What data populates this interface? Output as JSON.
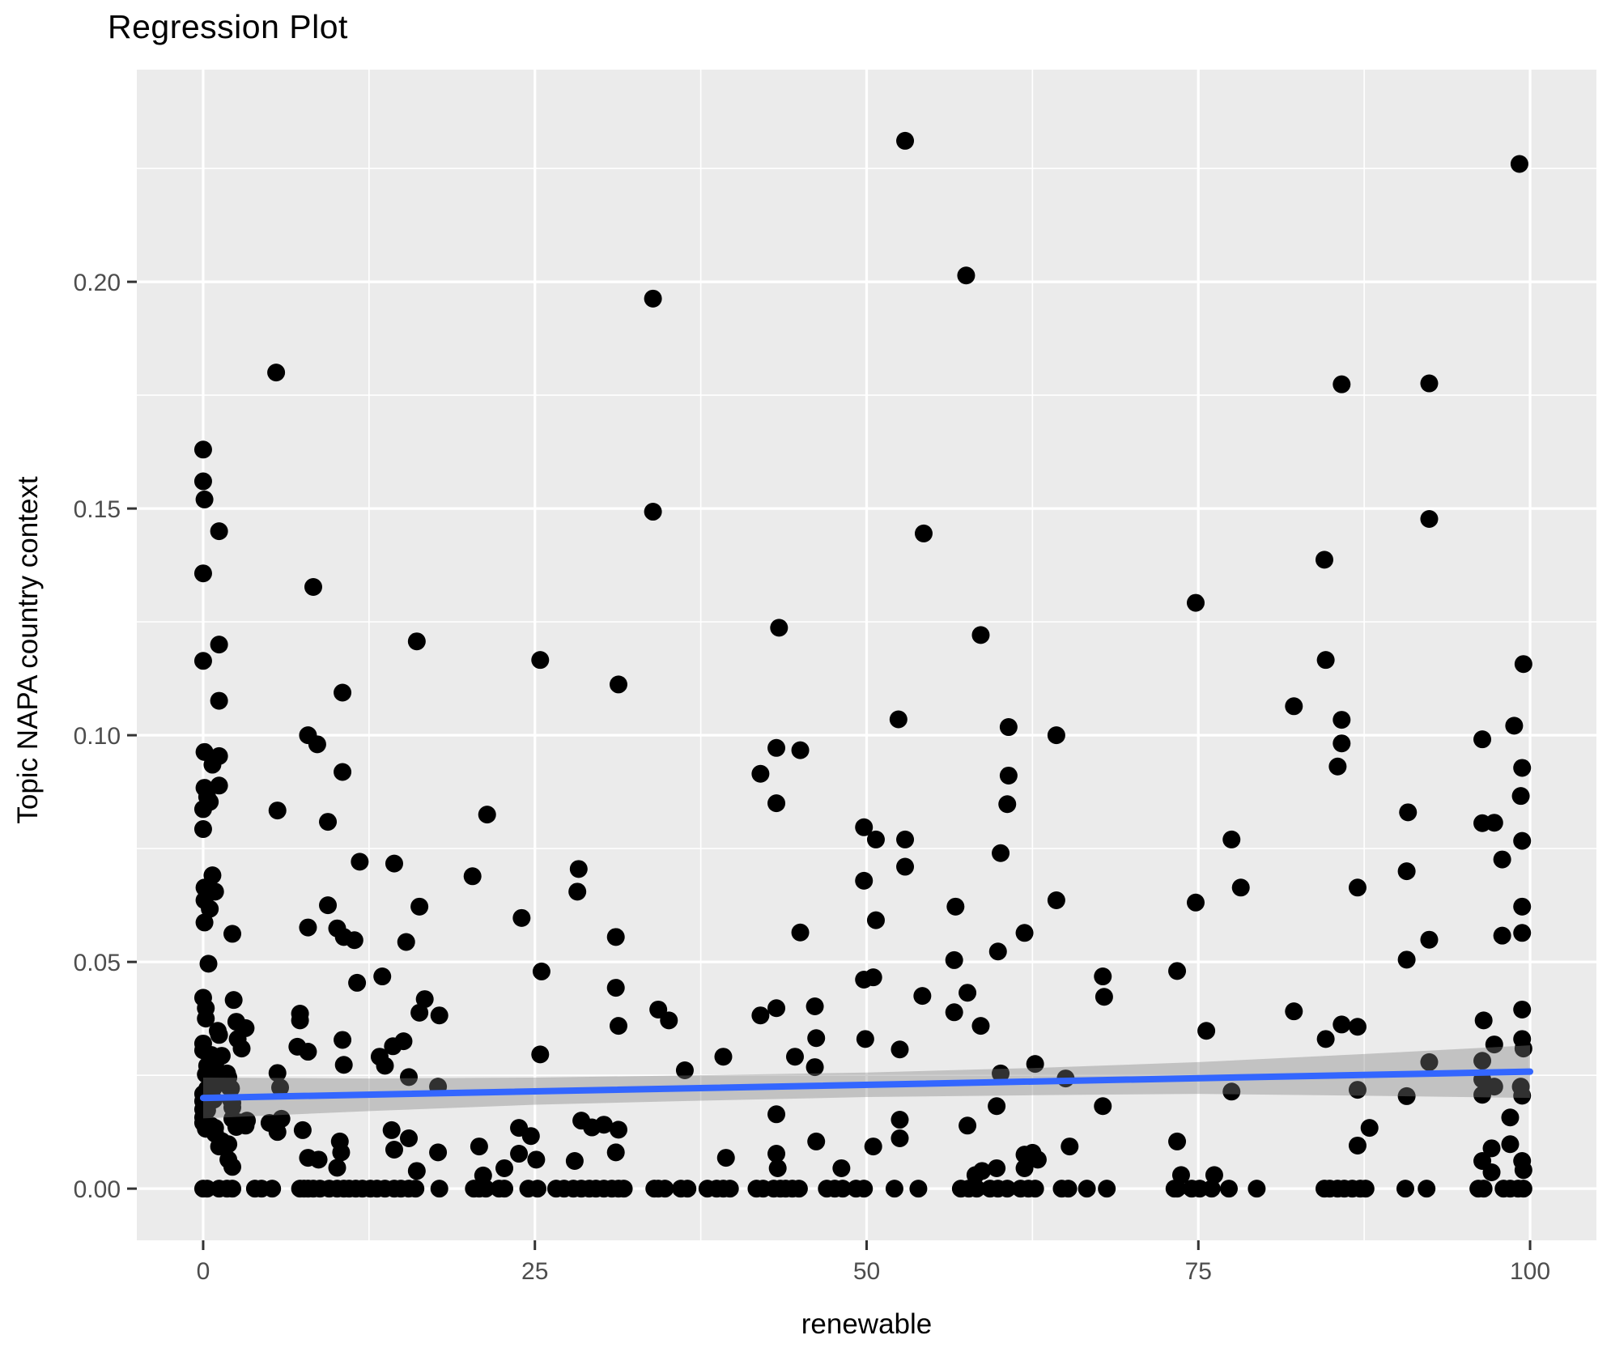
{
  "title": "Regression Plot",
  "chart_data": {
    "type": "scatter",
    "title": "Regression Plot",
    "xlabel": "renewable",
    "ylabel": "Topic NAPA country context",
    "xlim": [
      -5,
      105
    ],
    "ylim": [
      -0.0114,
      0.2468
    ],
    "x_ticks": [
      0,
      25,
      50,
      75,
      100
    ],
    "x_tick_labels": [
      "0",
      "25",
      "50",
      "75",
      "100"
    ],
    "x_minor": [
      12.5,
      37.5,
      62.5,
      87.5
    ],
    "y_ticks": [
      0.0,
      0.05,
      0.1,
      0.15,
      0.2
    ],
    "y_tick_labels": [
      "0.00",
      "0.05",
      "0.10",
      "0.15",
      "0.20"
    ],
    "y_minor": [
      0.025,
      0.075,
      0.125,
      0.175,
      0.225
    ],
    "grid": "major+minor white on gray panel",
    "legend_position": "none",
    "panel_background": "#EBEBEB",
    "gridline_color": "#FFFFFF",
    "point_color": "#000000",
    "regression_line": {
      "x": [
        0,
        100
      ],
      "y": [
        0.02,
        0.0258
      ],
      "color": "#3366FF"
    },
    "confidence_band": {
      "color": "#808080",
      "opacity": 0.38,
      "x": [
        0,
        12.5,
        25,
        37.5,
        50,
        62.5,
        75,
        87.5,
        100
      ],
      "lower": [
        0.0155,
        0.0171,
        0.0185,
        0.0194,
        0.0202,
        0.0206,
        0.0209,
        0.0205,
        0.02
      ],
      "upper": [
        0.0245,
        0.0243,
        0.0245,
        0.025,
        0.0256,
        0.0266,
        0.0279,
        0.0297,
        0.0316
      ]
    },
    "points": [
      [
        52.9,
        0.2311
      ],
      [
        99.2,
        0.226
      ],
      [
        57.5,
        0.2014
      ],
      [
        33.9,
        0.1963
      ],
      [
        5.5,
        0.18
      ],
      [
        85.8,
        0.1774
      ],
      [
        92.4,
        0.1776
      ],
      [
        0,
        0.163
      ],
      [
        0,
        0.156
      ],
      [
        0.1,
        0.152
      ],
      [
        33.9,
        0.1493
      ],
      [
        92.4,
        0.1477
      ],
      [
        1.2,
        0.145
      ],
      [
        54.3,
        0.1445
      ],
      [
        84.5,
        0.1387
      ],
      [
        0,
        0.1357
      ],
      [
        8.3,
        0.1327
      ],
      [
        74.8,
        0.1292
      ],
      [
        43.4,
        0.1237
      ],
      [
        58.6,
        0.1221
      ],
      [
        16.1,
        0.1207
      ],
      [
        1.2,
        0.12
      ],
      [
        0,
        0.1164
      ],
      [
        25.4,
        0.1166
      ],
      [
        84.6,
        0.1166
      ],
      [
        99.5,
        0.1157
      ],
      [
        31.3,
        0.1112
      ],
      [
        10.5,
        0.1094
      ],
      [
        1.2,
        0.1076
      ],
      [
        82.2,
        0.1064
      ],
      [
        52.4,
        0.1035
      ],
      [
        85.8,
        0.1034
      ],
      [
        98.8,
        0.1021
      ],
      [
        60.7,
        0.1018
      ],
      [
        64.3,
        0.1
      ],
      [
        7.9,
        0.1
      ],
      [
        8.6,
        0.098
      ],
      [
        43.2,
        0.0972
      ],
      [
        45.0,
        0.0967
      ],
      [
        0.1,
        0.0963
      ],
      [
        1.2,
        0.0954
      ],
      [
        0.7,
        0.0935
      ],
      [
        42.0,
        0.0915
      ],
      [
        96.4,
        0.0991
      ],
      [
        85.8,
        0.0982
      ],
      [
        85.5,
        0.0931
      ],
      [
        99.4,
        0.0928
      ],
      [
        10.5,
        0.0919
      ],
      [
        60.7,
        0.0911
      ],
      [
        0.1,
        0.0884
      ],
      [
        1.2,
        0.0889
      ],
      [
        99.3,
        0.0866
      ],
      [
        0.3,
        0.0864
      ],
      [
        0.5,
        0.0853
      ],
      [
        43.2,
        0.085
      ],
      [
        60.6,
        0.0848
      ],
      [
        0,
        0.0837
      ],
      [
        5.6,
        0.0834
      ],
      [
        90.8,
        0.083
      ],
      [
        21.4,
        0.0825
      ],
      [
        9.4,
        0.0809
      ],
      [
        96.4,
        0.0806
      ],
      [
        97.3,
        0.0807
      ],
      [
        49.8,
        0.0797
      ],
      [
        0,
        0.0793
      ],
      [
        50.7,
        0.077
      ],
      [
        52.9,
        0.077
      ],
      [
        77.5,
        0.077
      ],
      [
        99.4,
        0.0767
      ],
      [
        60.1,
        0.074
      ],
      [
        97.9,
        0.0726
      ],
      [
        11.8,
        0.0721
      ],
      [
        14.4,
        0.0717
      ],
      [
        52.9,
        0.071
      ],
      [
        28.3,
        0.0705
      ],
      [
        90.7,
        0.07
      ],
      [
        0.7,
        0.0691
      ],
      [
        20.3,
        0.0689
      ],
      [
        49.8,
        0.0679
      ],
      [
        0.1,
        0.0664
      ],
      [
        87.0,
        0.0664
      ],
      [
        78.2,
        0.0664
      ],
      [
        0.9,
        0.0655
      ],
      [
        28.2,
        0.0655
      ],
      [
        64.3,
        0.0636
      ],
      [
        0.1,
        0.0636
      ],
      [
        74.8,
        0.0631
      ],
      [
        9.4,
        0.0625
      ],
      [
        16.3,
        0.0622
      ],
      [
        56.7,
        0.0622
      ],
      [
        99.4,
        0.0622
      ],
      [
        0.5,
        0.0617
      ],
      [
        24.0,
        0.0597
      ],
      [
        50.7,
        0.0592
      ],
      [
        0.1,
        0.0587
      ],
      [
        7.9,
        0.0576
      ],
      [
        10.1,
        0.0574
      ],
      [
        45.0,
        0.0565
      ],
      [
        61.9,
        0.0564
      ],
      [
        99.4,
        0.0564
      ],
      [
        2.2,
        0.0562
      ],
      [
        97.9,
        0.0558
      ],
      [
        10.6,
        0.0555
      ],
      [
        31.1,
        0.0555
      ],
      [
        92.4,
        0.0549
      ],
      [
        11.4,
        0.0548
      ],
      [
        15.3,
        0.0544
      ],
      [
        59.9,
        0.0523
      ],
      [
        90.7,
        0.0505
      ],
      [
        56.6,
        0.0504
      ],
      [
        0.4,
        0.0496
      ],
      [
        73.4,
        0.048
      ],
      [
        25.5,
        0.0479
      ],
      [
        13.5,
        0.0468
      ],
      [
        67.8,
        0.0468
      ],
      [
        49.8,
        0.0461
      ],
      [
        50.5,
        0.0466
      ],
      [
        11.6,
        0.0454
      ],
      [
        31.1,
        0.0443
      ],
      [
        57.6,
        0.0432
      ],
      [
        54.2,
        0.0425
      ],
      [
        67.9,
        0.0423
      ],
      [
        0,
        0.0421
      ],
      [
        16.7,
        0.0418
      ],
      [
        2.3,
        0.0416
      ],
      [
        46.1,
        0.0402
      ],
      [
        43.2,
        0.0398
      ],
      [
        0.2,
        0.0398
      ],
      [
        99.4,
        0.0395
      ],
      [
        34.3,
        0.0395
      ],
      [
        82.2,
        0.0391
      ],
      [
        56.6,
        0.0389
      ],
      [
        16.3,
        0.0388
      ],
      [
        7.3,
        0.0386
      ],
      [
        42.0,
        0.0382
      ],
      [
        17.8,
        0.0382
      ],
      [
        0.2,
        0.0375
      ],
      [
        35.1,
        0.0371
      ],
      [
        7.3,
        0.0371
      ],
      [
        96.5,
        0.0371
      ],
      [
        2.5,
        0.0368
      ],
      [
        85.8,
        0.0362
      ],
      [
        58.6,
        0.0359
      ],
      [
        31.3,
        0.0359
      ],
      [
        87.0,
        0.0357
      ],
      [
        3.2,
        0.0354
      ],
      [
        75.6,
        0.0348
      ],
      [
        1.1,
        0.0348
      ],
      [
        1.2,
        0.0339
      ],
      [
        2.6,
        0.033
      ],
      [
        46.2,
        0.0332
      ],
      [
        84.6,
        0.033
      ],
      [
        99.4,
        0.033
      ],
      [
        49.9,
        0.033
      ],
      [
        10.5,
        0.0328
      ],
      [
        15.1,
        0.0325
      ],
      [
        0,
        0.032
      ],
      [
        97.3,
        0.0318
      ],
      [
        14.3,
        0.0314
      ],
      [
        7.1,
        0.0313
      ],
      [
        2.9,
        0.0309
      ],
      [
        99.5,
        0.0309
      ],
      [
        52.5,
        0.0307
      ],
      [
        0,
        0.0305
      ],
      [
        7.9,
        0.0302
      ],
      [
        25.4,
        0.0296
      ],
      [
        0.6,
        0.0295
      ],
      [
        1.4,
        0.0293
      ],
      [
        0.8,
        0.0291
      ],
      [
        39.2,
        0.0291
      ],
      [
        44.6,
        0.0291
      ],
      [
        13.3,
        0.0291
      ],
      [
        1.1,
        0.0288
      ],
      [
        96.4,
        0.0282
      ],
      [
        92.4,
        0.0279
      ],
      [
        62.7,
        0.0275
      ],
      [
        0.9,
        0.0273
      ],
      [
        10.6,
        0.0273
      ],
      [
        0.3,
        0.0271
      ],
      [
        13.7,
        0.0271
      ],
      [
        46.1,
        0.0268
      ],
      [
        36.3,
        0.0261
      ],
      [
        5.6,
        0.0255
      ],
      [
        1.8,
        0.0254
      ],
      [
        60.1,
        0.0254
      ],
      [
        0.2,
        0.0252
      ],
      [
        1.6,
        0.0248
      ],
      [
        15.5,
        0.0246
      ],
      [
        0.7,
        0.0245
      ],
      [
        1.9,
        0.0245
      ],
      [
        65.0,
        0.0243
      ],
      [
        96.4,
        0.0241
      ],
      [
        5.8,
        0.0223
      ],
      [
        0.8,
        0.0223
      ],
      [
        2.0,
        0.0223
      ],
      [
        17.7,
        0.0225
      ],
      [
        97.3,
        0.0225
      ],
      [
        99.3,
        0.0225
      ],
      [
        2.1,
        0.0221
      ],
      [
        0.3,
        0.022
      ],
      [
        87.0,
        0.0218
      ],
      [
        77.5,
        0.0214
      ],
      [
        0,
        0.0209
      ],
      [
        96.4,
        0.0207
      ],
      [
        0.5,
        0.0205
      ],
      [
        90.7,
        0.0204
      ],
      [
        99.4,
        0.0205
      ],
      [
        0.8,
        0.0196
      ],
      [
        2.1,
        0.0196
      ],
      [
        0,
        0.0193
      ],
      [
        2.2,
        0.0189
      ],
      [
        59.8,
        0.0182
      ],
      [
        67.8,
        0.0182
      ],
      [
        2.2,
        0.0179
      ],
      [
        0,
        0.0175
      ],
      [
        0.3,
        0.0173
      ],
      [
        43.2,
        0.0164
      ],
      [
        0,
        0.0157
      ],
      [
        98.5,
        0.0157
      ],
      [
        2.2,
        0.0154
      ],
      [
        5.9,
        0.0154
      ],
      [
        52.5,
        0.0152
      ],
      [
        28.5,
        0.015
      ],
      [
        3.3,
        0.015
      ],
      [
        0.1,
        0.0146
      ],
      [
        2.8,
        0.0146
      ],
      [
        0,
        0.0145
      ],
      [
        5.0,
        0.0145
      ],
      [
        30.2,
        0.0141
      ],
      [
        0.6,
        0.0139
      ],
      [
        3.2,
        0.0139
      ],
      [
        57.6,
        0.0139
      ],
      [
        2.5,
        0.0136
      ],
      [
        29.3,
        0.0135
      ],
      [
        23.8,
        0.0134
      ],
      [
        0.9,
        0.0134
      ],
      [
        87.9,
        0.0134
      ],
      [
        0.2,
        0.0132
      ],
      [
        31.3,
        0.013
      ],
      [
        7.5,
        0.0129
      ],
      [
        14.2,
        0.0129
      ],
      [
        5.6,
        0.0125
      ],
      [
        0.9,
        0.0121
      ],
      [
        24.7,
        0.0116
      ],
      [
        52.5,
        0.0111
      ],
      [
        15.5,
        0.0111
      ],
      [
        1.4,
        0.0105
      ],
      [
        10.3,
        0.0104
      ],
      [
        46.2,
        0.0104
      ],
      [
        73.4,
        0.0104
      ],
      [
        1.9,
        0.0098
      ],
      [
        98.5,
        0.0098
      ],
      [
        1.2,
        0.0093
      ],
      [
        20.8,
        0.0093
      ],
      [
        50.5,
        0.0093
      ],
      [
        65.3,
        0.0093
      ],
      [
        87.0,
        0.0095
      ],
      [
        97.1,
        0.0089
      ],
      [
        14.4,
        0.0086
      ],
      [
        10.4,
        0.008
      ],
      [
        17.7,
        0.008
      ],
      [
        31.1,
        0.008
      ],
      [
        62.5,
        0.0079
      ],
      [
        23.8,
        0.0077
      ],
      [
        43.2,
        0.0077
      ],
      [
        61.9,
        0.0075
      ],
      [
        7.9,
        0.0068
      ],
      [
        39.4,
        0.0068
      ],
      [
        1.9,
        0.0064
      ],
      [
        8.7,
        0.0064
      ],
      [
        25.1,
        0.0064
      ],
      [
        62.9,
        0.0064
      ],
      [
        28.0,
        0.0061
      ],
      [
        96.4,
        0.0061
      ],
      [
        99.4,
        0.0061
      ],
      [
        2.2,
        0.0048
      ],
      [
        10.1,
        0.0046
      ],
      [
        22.7,
        0.0045
      ],
      [
        43.3,
        0.0045
      ],
      [
        48.1,
        0.0045
      ],
      [
        61.9,
        0.0045
      ],
      [
        59.8,
        0.0045
      ],
      [
        99.5,
        0.0041
      ],
      [
        16.1,
        0.0039
      ],
      [
        58.7,
        0.0039
      ],
      [
        97.1,
        0.0036
      ],
      [
        73.7,
        0.003
      ],
      [
        76.2,
        0.003
      ],
      [
        58.2,
        0.003
      ],
      [
        21.1,
        0.0029
      ],
      [
        0,
        0
      ],
      [
        0.3,
        0
      ],
      [
        1.2,
        0
      ],
      [
        1.8,
        0
      ],
      [
        2.2,
        0
      ],
      [
        3.9,
        0
      ],
      [
        4.4,
        0
      ],
      [
        5.2,
        0
      ],
      [
        7.3,
        0
      ],
      [
        7.6,
        0
      ],
      [
        7.9,
        0
      ],
      [
        8.3,
        0
      ],
      [
        8.8,
        0
      ],
      [
        9.5,
        0
      ],
      [
        10.1,
        0
      ],
      [
        10.6,
        0
      ],
      [
        11.0,
        0
      ],
      [
        11.5,
        0
      ],
      [
        12.0,
        0
      ],
      [
        12.6,
        0
      ],
      [
        13.1,
        0
      ],
      [
        13.7,
        0
      ],
      [
        14.4,
        0
      ],
      [
        14.9,
        0
      ],
      [
        15.5,
        0
      ],
      [
        16.0,
        0
      ],
      [
        17.8,
        0
      ],
      [
        20.4,
        0
      ],
      [
        20.8,
        0
      ],
      [
        21.3,
        0
      ],
      [
        22.3,
        0
      ],
      [
        22.7,
        0
      ],
      [
        24.5,
        0
      ],
      [
        25.2,
        0
      ],
      [
        26.6,
        0
      ],
      [
        27.2,
        0
      ],
      [
        27.9,
        0
      ],
      [
        28.5,
        0
      ],
      [
        29.1,
        0
      ],
      [
        29.6,
        0
      ],
      [
        30.2,
        0
      ],
      [
        30.8,
        0
      ],
      [
        31.3,
        0
      ],
      [
        31.7,
        0
      ],
      [
        34.0,
        0
      ],
      [
        34.3,
        0
      ],
      [
        34.8,
        0
      ],
      [
        36.0,
        0
      ],
      [
        36.5,
        0
      ],
      [
        38.0,
        0
      ],
      [
        38.7,
        0
      ],
      [
        39.2,
        0
      ],
      [
        39.7,
        0
      ],
      [
        41.7,
        0
      ],
      [
        42.2,
        0
      ],
      [
        43.0,
        0
      ],
      [
        43.5,
        0
      ],
      [
        43.9,
        0
      ],
      [
        44.4,
        0
      ],
      [
        44.9,
        0
      ],
      [
        47.0,
        0
      ],
      [
        47.6,
        0
      ],
      [
        48.2,
        0
      ],
      [
        49.2,
        0
      ],
      [
        49.8,
        0
      ],
      [
        52.1,
        0
      ],
      [
        53.9,
        0
      ],
      [
        57.1,
        0
      ],
      [
        57.7,
        0
      ],
      [
        58.3,
        0
      ],
      [
        59.3,
        0
      ],
      [
        59.9,
        0
      ],
      [
        60.6,
        0
      ],
      [
        61.6,
        0
      ],
      [
        62.2,
        0
      ],
      [
        62.7,
        0
      ],
      [
        64.7,
        0
      ],
      [
        65.2,
        0
      ],
      [
        66.6,
        0
      ],
      [
        68.1,
        0
      ],
      [
        73.2,
        0
      ],
      [
        73.4,
        0
      ],
      [
        74.5,
        0
      ],
      [
        75.1,
        0
      ],
      [
        76.0,
        0
      ],
      [
        77.3,
        0
      ],
      [
        79.4,
        0
      ],
      [
        84.5,
        0
      ],
      [
        84.9,
        0
      ],
      [
        85.5,
        0
      ],
      [
        86.0,
        0
      ],
      [
        86.6,
        0
      ],
      [
        87.2,
        0
      ],
      [
        87.6,
        0
      ],
      [
        90.6,
        0
      ],
      [
        92.2,
        0
      ],
      [
        96.1,
        0
      ],
      [
        96.5,
        0
      ],
      [
        98.0,
        0
      ],
      [
        98.5,
        0
      ],
      [
        99.1,
        0
      ],
      [
        99.5,
        0
      ]
    ]
  }
}
